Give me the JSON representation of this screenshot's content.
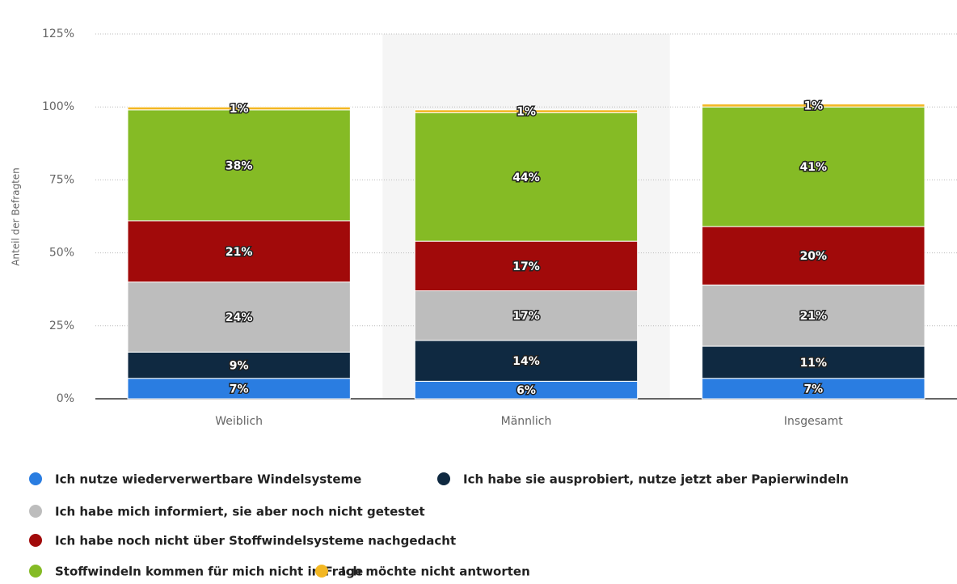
{
  "chart_data": {
    "type": "stacked_bar",
    "y_axis_label": "Anteil der Befragten",
    "categories": [
      "Weiblich",
      "Männlich",
      "Insgesamt"
    ],
    "ylim": [
      0,
      125
    ],
    "yticks": [
      {
        "value": 0,
        "label": "0%"
      },
      {
        "value": 25,
        "label": "25%"
      },
      {
        "value": 50,
        "label": "50%"
      },
      {
        "value": 75,
        "label": "75%"
      },
      {
        "value": 100,
        "label": "100%"
      },
      {
        "value": 125,
        "label": "125%"
      }
    ],
    "grid": true,
    "legend": "bottom",
    "series": [
      {
        "name": "Ich nutze wiederverwertbare Windelsysteme",
        "color": "#2a7de1",
        "values": [
          7,
          6,
          7
        ],
        "value_labels": [
          "7%",
          "6%",
          "7%"
        ]
      },
      {
        "name": "Ich habe sie ausprobiert, nutze jetzt aber Papierwindeln",
        "color": "#0f2941",
        "values": [
          9,
          14,
          11
        ],
        "value_labels": [
          "9%",
          "14%",
          "11%"
        ]
      },
      {
        "name": "Ich habe mich informiert, sie aber noch nicht getestet",
        "color": "#bdbdbd",
        "values": [
          24,
          17,
          21
        ],
        "value_labels": [
          "24%",
          "17%",
          "21%"
        ]
      },
      {
        "name": "Ich habe noch nicht über Stoffwindelsysteme nachgedacht",
        "color": "#a10a0a",
        "values": [
          21,
          17,
          20
        ],
        "value_labels": [
          "21%",
          "17%",
          "20%"
        ]
      },
      {
        "name": "Stoffwindeln kommen für mich nicht in Frage",
        "color": "#85bb25",
        "values": [
          38,
          44,
          41
        ],
        "value_labels": [
          "38%",
          "44%",
          "41%"
        ]
      },
      {
        "name": "Ich möchte nicht antworten",
        "color": "#f3b723",
        "values": [
          1,
          1,
          1
        ],
        "value_labels": [
          "1%",
          "1%",
          "1%"
        ]
      }
    ]
  }
}
